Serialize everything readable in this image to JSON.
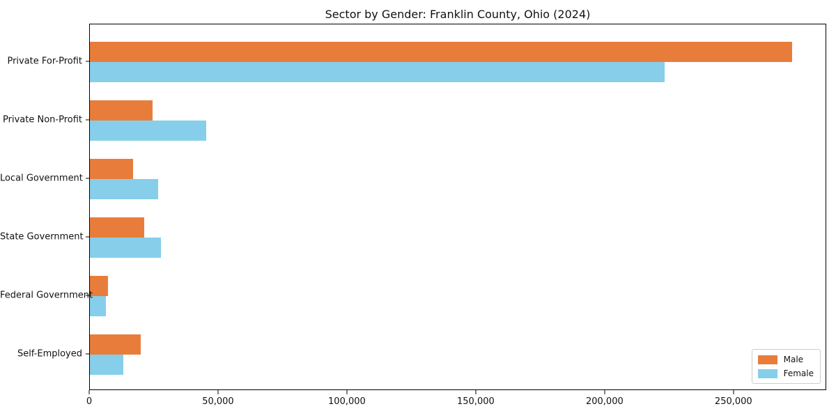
{
  "chart_data": {
    "type": "bar",
    "orientation": "horizontal",
    "title": "Sector by Gender: Franklin County, Ohio (2024)",
    "categories": [
      "Private For-Profit",
      "Private Non-Profit",
      "Local Government",
      "State Government",
      "Federal Government",
      "Self-Employed"
    ],
    "series": [
      {
        "name": "Male",
        "color": "#e87d3b",
        "values": [
          272600,
          24400,
          16800,
          21100,
          7000,
          19800
        ]
      },
      {
        "name": "Female",
        "color": "#87ceeb",
        "values": [
          223100,
          45200,
          26500,
          27600,
          6300,
          13000
        ]
      }
    ],
    "xlabel": "",
    "ylabel": "",
    "xlim": [
      0,
      286000
    ],
    "xticks": [
      {
        "value": 0,
        "label": "0"
      },
      {
        "value": 50000,
        "label": "50,000"
      },
      {
        "value": 100000,
        "label": "100,000"
      },
      {
        "value": 150000,
        "label": "150,000"
      },
      {
        "value": 200000,
        "label": "200,000"
      },
      {
        "value": 250000,
        "label": "250,000"
      }
    ],
    "grid": false,
    "legend_position": "lower right",
    "background_color": "#ffffff",
    "axis_color": "#000000"
  }
}
